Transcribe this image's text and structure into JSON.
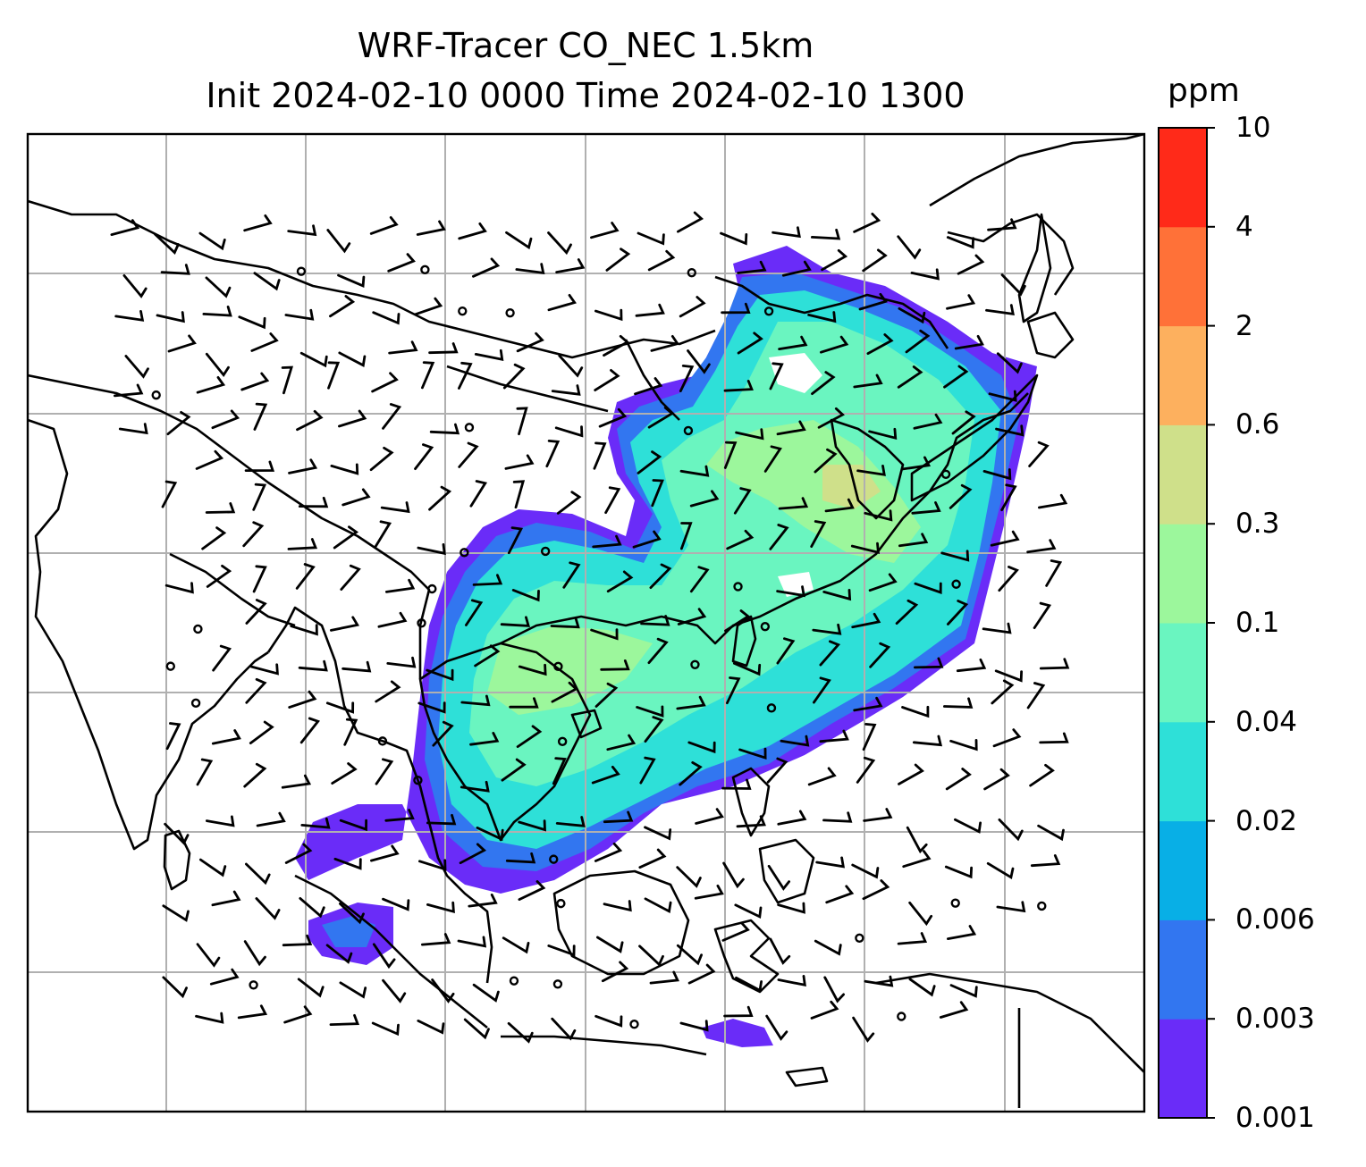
{
  "title": {
    "line1": "WRF-Tracer CO_NEC 1.5km",
    "line2": "Init 2024-02-10 0000 Time 2024-02-10 1300"
  },
  "colorbar": {
    "unit": "ppm",
    "ticks": [
      "0.001",
      "0.003",
      "0.006",
      "0.02",
      "0.04",
      "0.1",
      "0.3",
      "0.6",
      "2",
      "4",
      "10"
    ],
    "colors": [
      "#6a2cf8",
      "#3276f0",
      "#08afe6",
      "#2ee0d8",
      "#6af5c0",
      "#9cf79c",
      "#cfe08a",
      "#fdb05e",
      "#ff7138",
      "#ff2a19"
    ]
  },
  "map": {
    "field": "CO_NEC tracer concentration",
    "level": "1.5km",
    "gridlines": true,
    "overlay": "wind barbs"
  }
}
